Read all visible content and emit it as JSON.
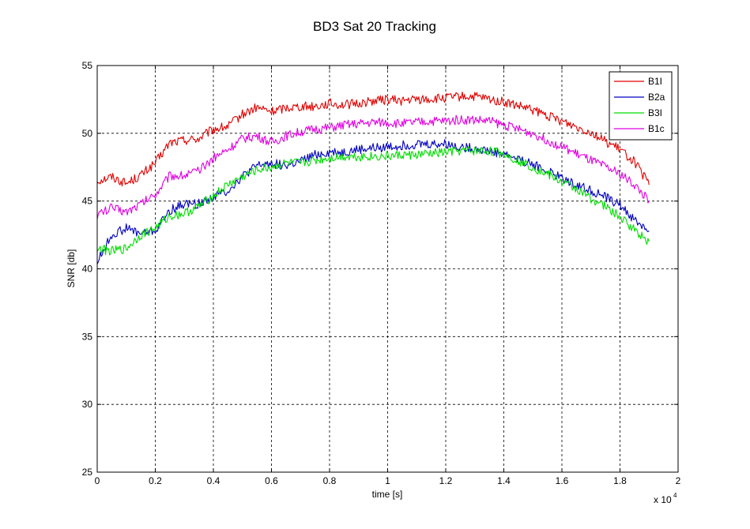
{
  "chart_data": {
    "type": "line",
    "title": "BD3 Sat 20 Tracking",
    "xlabel": "time [s]",
    "ylabel": "SNR [db]",
    "x_multiplier_label": "x 10",
    "x_multiplier_exponent": "4",
    "xlim": [
      0,
      20000
    ],
    "ylim": [
      25,
      55
    ],
    "grid": true,
    "legend_position": "top-right",
    "x_ticks": [
      0,
      2000,
      4000,
      6000,
      8000,
      10000,
      12000,
      14000,
      16000,
      18000,
      20000
    ],
    "x_tick_labels": [
      "0",
      "0.2",
      "0.4",
      "0.6",
      "0.8",
      "1",
      "1.2",
      "1.4",
      "1.6",
      "1.8",
      "2"
    ],
    "y_ticks": [
      25,
      30,
      35,
      40,
      45,
      50,
      55
    ],
    "y_tick_labels": [
      "25",
      "30",
      "35",
      "40",
      "45",
      "50",
      "55"
    ],
    "x": [
      0,
      500,
      1000,
      1500,
      2000,
      2500,
      3000,
      3500,
      4000,
      4500,
      5000,
      5500,
      6000,
      6500,
      7000,
      7500,
      8000,
      8500,
      9000,
      9500,
      10000,
      10500,
      11000,
      11500,
      12000,
      12500,
      13000,
      13500,
      14000,
      14500,
      15000,
      15500,
      16000,
      16500,
      17000,
      17500,
      18000,
      18500,
      19000
    ],
    "series": [
      {
        "name": "B1I",
        "color": "#e00000",
        "values": [
          46.5,
          46.8,
          46.3,
          46.9,
          47.8,
          49.3,
          49.5,
          49.6,
          50.3,
          50.5,
          51.4,
          51.9,
          51.6,
          51.9,
          52.0,
          52.0,
          52.2,
          52.1,
          52.2,
          52.4,
          52.5,
          52.4,
          52.5,
          52.5,
          52.6,
          52.7,
          52.7,
          52.5,
          52.3,
          52.0,
          51.7,
          51.3,
          50.9,
          50.5,
          50.1,
          49.4,
          48.8,
          47.9,
          46.2
        ]
      },
      {
        "name": "B2a",
        "color": "#0000c0",
        "values": [
          40.5,
          42.5,
          43.0,
          42.6,
          42.8,
          44.3,
          44.8,
          44.8,
          45.3,
          45.8,
          46.8,
          47.6,
          47.8,
          47.6,
          47.9,
          48.4,
          48.6,
          48.6,
          48.8,
          48.9,
          49.0,
          49.1,
          49.2,
          49.2,
          49.2,
          49.0,
          48.9,
          48.7,
          48.5,
          48.1,
          47.7,
          47.2,
          46.7,
          46.2,
          45.8,
          45.3,
          44.7,
          43.6,
          42.8
        ]
      },
      {
        "name": "B3I",
        "color": "#00dd00",
        "values": [
          41.5,
          41.3,
          41.5,
          42.5,
          43.0,
          43.9,
          44.1,
          44.6,
          45.4,
          46.2,
          46.8,
          47.3,
          47.5,
          47.8,
          47.8,
          48.0,
          48.2,
          48.3,
          48.3,
          48.3,
          48.3,
          48.4,
          48.4,
          48.5,
          48.6,
          48.7,
          48.7,
          48.7,
          48.5,
          48.0,
          47.5,
          47.0,
          46.4,
          45.9,
          45.2,
          44.6,
          43.8,
          42.9,
          42.0
        ]
      },
      {
        "name": "B1c",
        "color": "#e000e0",
        "values": [
          44.0,
          44.5,
          44.2,
          44.8,
          45.5,
          46.9,
          46.9,
          47.2,
          48.2,
          48.8,
          49.6,
          49.8,
          49.3,
          49.8,
          50.1,
          50.3,
          50.4,
          50.6,
          50.7,
          50.8,
          50.8,
          50.7,
          50.8,
          50.9,
          50.9,
          51.0,
          51.0,
          50.9,
          50.6,
          50.3,
          50.0,
          49.5,
          49.0,
          48.5,
          48.0,
          47.5,
          47.0,
          46.2,
          45.0
        ]
      }
    ]
  }
}
